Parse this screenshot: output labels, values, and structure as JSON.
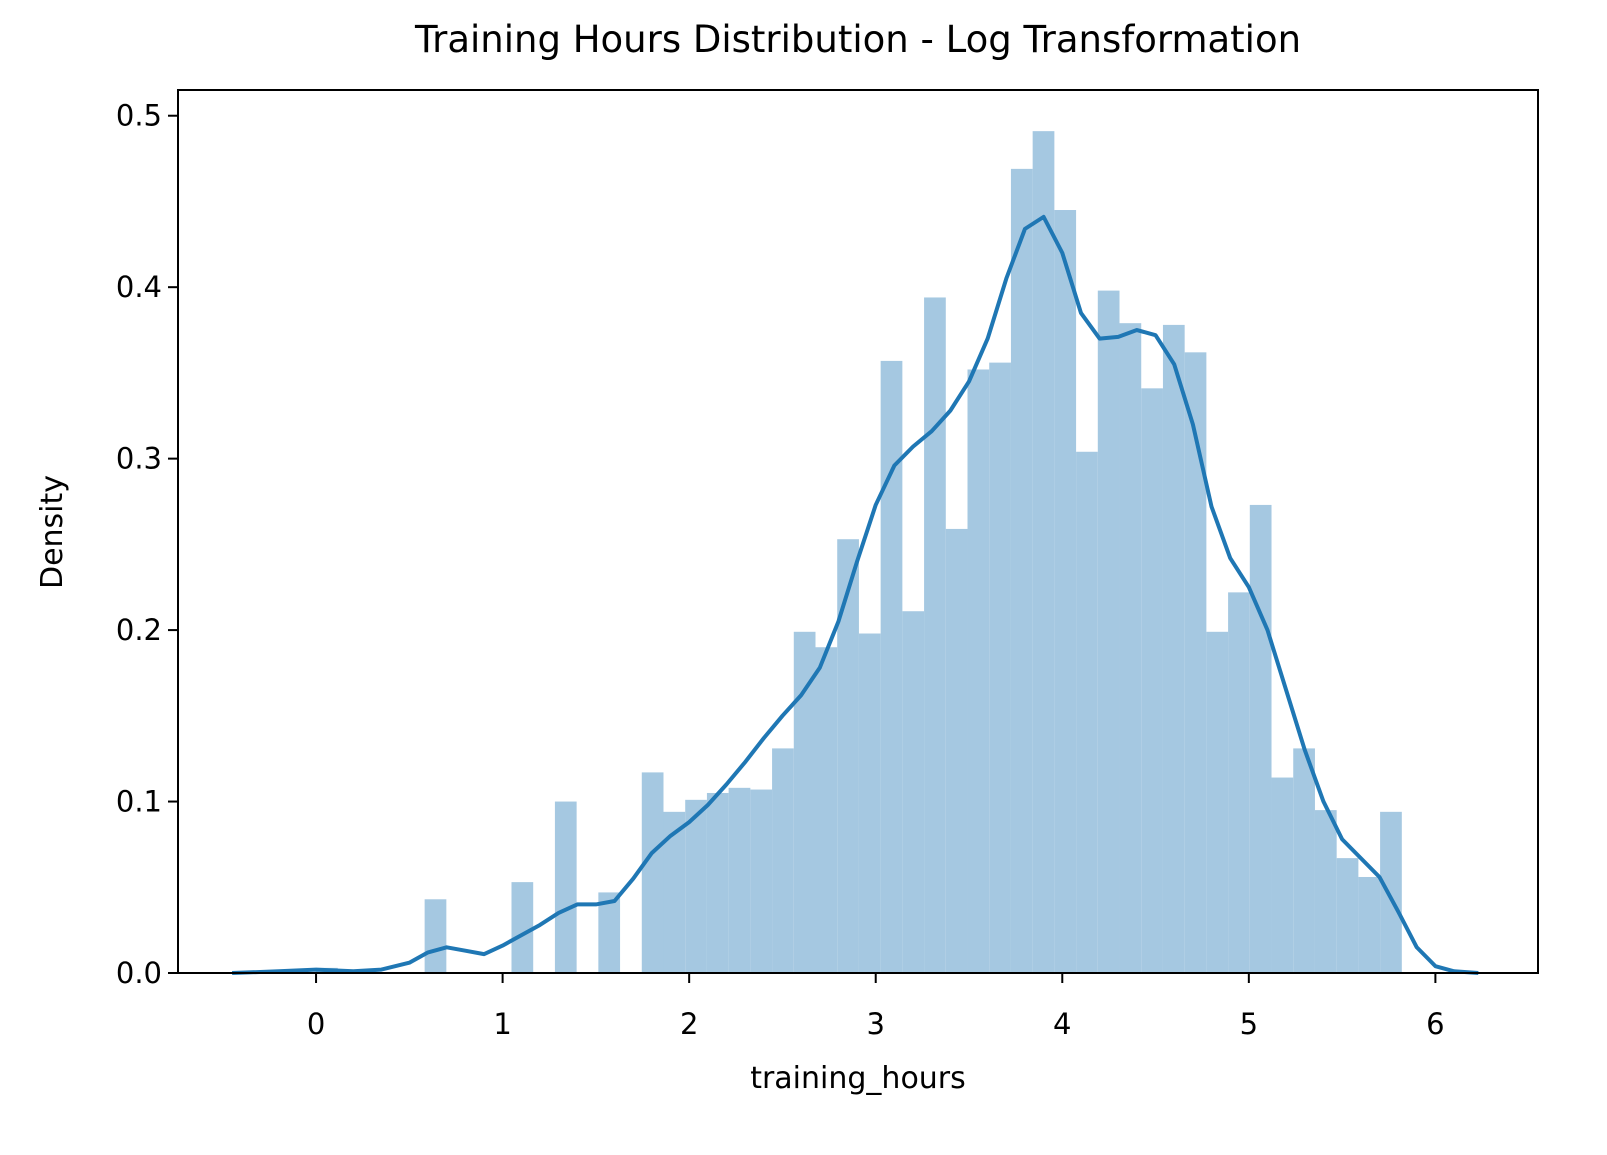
{
  "chart_data": {
    "type": "histogram",
    "title": "Training Hours Distribution - Log Transformation",
    "xlabel": "training_hours",
    "ylabel": "Density",
    "bins": [
      0,
      0.1164,
      0.2328,
      0.3492,
      0.4656,
      0.582,
      0.6984,
      0.8148,
      0.9312,
      1.0476,
      1.164,
      1.2804,
      1.3968,
      1.5132,
      1.6296,
      1.746,
      1.8624,
      1.9788,
      2.0952,
      2.2116,
      2.328,
      2.4444,
      2.5608,
      2.6772,
      2.7936,
      2.91,
      3.0264,
      3.1428,
      3.2592,
      3.3756,
      3.492,
      3.6084,
      3.7248,
      3.8412,
      3.9576,
      4.074,
      4.1904,
      4.3068,
      4.4232,
      4.5396,
      4.656,
      4.7724,
      4.8888,
      5.0052,
      5.1216,
      5.238,
      5.3544,
      5.4708,
      5.5872,
      5.7036,
      5.82
    ],
    "values": [
      0.003,
      0,
      0,
      0,
      0,
      0.043,
      0,
      0,
      0,
      0.053,
      0,
      0.1,
      0,
      0.047,
      0,
      0.117,
      0.094,
      0.101,
      0.105,
      0.108,
      0.107,
      0.131,
      0.199,
      0.19,
      0.253,
      0.198,
      0.357,
      0.211,
      0.394,
      0.259,
      0.352,
      0.356,
      0.469,
      0.491,
      0.445,
      0.304,
      0.398,
      0.379,
      0.341,
      0.378,
      0.362,
      0.199,
      0.222,
      0.273,
      0.114,
      0.131,
      0.095,
      0.067,
      0.056,
      0.094
    ],
    "color": "#a5c8e1",
    "kde": {
      "color": "#1f77b4",
      "x": [
        -0.45,
        -0.2,
        0,
        0.2,
        0.35,
        0.5,
        0.6,
        0.7,
        0.8,
        0.9,
        1.0,
        1.1,
        1.2,
        1.3,
        1.4,
        1.5,
        1.6,
        1.7,
        1.8,
        1.9,
        2.0,
        2.1,
        2.2,
        2.3,
        2.4,
        2.5,
        2.6,
        2.7,
        2.8,
        2.9,
        3.0,
        3.1,
        3.2,
        3.3,
        3.4,
        3.5,
        3.6,
        3.7,
        3.8,
        3.9,
        4.0,
        4.1,
        4.2,
        4.3,
        4.4,
        4.5,
        4.6,
        4.7,
        4.8,
        4.9,
        5.0,
        5.1,
        5.2,
        5.3,
        5.4,
        5.5,
        5.6,
        5.7,
        5.8,
        5.9,
        6.0,
        6.1,
        6.23
      ],
      "values": [
        0.0,
        0.001,
        0.002,
        0.001,
        0.002,
        0.006,
        0.012,
        0.015,
        0.013,
        0.011,
        0.016,
        0.022,
        0.028,
        0.035,
        0.04,
        0.04,
        0.042,
        0.055,
        0.07,
        0.08,
        0.088,
        0.098,
        0.11,
        0.123,
        0.137,
        0.15,
        0.162,
        0.178,
        0.205,
        0.24,
        0.273,
        0.296,
        0.307,
        0.316,
        0.328,
        0.345,
        0.37,
        0.405,
        0.434,
        0.441,
        0.42,
        0.385,
        0.37,
        0.371,
        0.375,
        0.372,
        0.355,
        0.32,
        0.272,
        0.242,
        0.225,
        0.2,
        0.165,
        0.13,
        0.1,
        0.078,
        0.067,
        0.056,
        0.036,
        0.015,
        0.004,
        0.001,
        0.0
      ]
    },
    "xlim": [
      -0.74,
      6.55
    ],
    "ylim": [
      0,
      0.515
    ],
    "xticks": [
      0,
      1,
      2,
      3,
      4,
      5,
      6
    ],
    "yticks": [
      {
        "value": 0,
        "label": "0.0"
      },
      0.1,
      0.2,
      0.3,
      0.4,
      0.5
    ]
  }
}
